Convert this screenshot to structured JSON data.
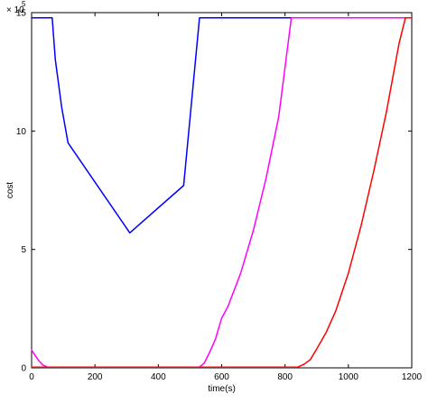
{
  "chart_data": {
    "type": "line",
    "title": "",
    "xlabel": "time(s)",
    "ylabel": "cost",
    "xlim": [
      0,
      1200
    ],
    "ylim": [
      0,
      1500000
    ],
    "x_ticks": [
      0,
      200,
      400,
      600,
      800,
      1000,
      1200
    ],
    "x_tick_labels": [
      "0",
      "200",
      "400",
      "600",
      "800",
      "1000",
      "1200"
    ],
    "y_ticks": [
      0,
      500000,
      1000000,
      1500000
    ],
    "y_tick_labels": [
      "0",
      "5",
      "10",
      "15"
    ],
    "y_multiplier": {
      "base": "× 10",
      "exponent": "5"
    },
    "grid": false,
    "legend": "none",
    "series": [
      {
        "color": "#0000ff",
        "x": [
          0,
          65,
          75,
          95,
          115,
          310,
          480,
          530,
          540,
          1200
        ],
        "y": [
          1478000,
          1478000,
          1300000,
          1100000,
          950000,
          570000,
          770000,
          1478000,
          1478000,
          1478000
        ]
      },
      {
        "color": "#ff00ff",
        "x": [
          0,
          10,
          20,
          35,
          50,
          530,
          545,
          560,
          580,
          600,
          620,
          660,
          700,
          740,
          780,
          820,
          1200
        ],
        "y": [
          75000,
          55000,
          35000,
          12000,
          3000,
          3000,
          20000,
          60000,
          120000,
          210000,
          260000,
          400000,
          580000,
          800000,
          1060000,
          1478000,
          1478000
        ]
      },
      {
        "color": "#ff0000",
        "x": [
          0,
          840,
          860,
          880,
          900,
          930,
          960,
          1000,
          1040,
          1080,
          1120,
          1160,
          1180,
          1200
        ],
        "y": [
          3000,
          3000,
          15000,
          35000,
          80000,
          150000,
          240000,
          400000,
          600000,
          830000,
          1080000,
          1370000,
          1478000,
          1478000
        ]
      }
    ]
  }
}
